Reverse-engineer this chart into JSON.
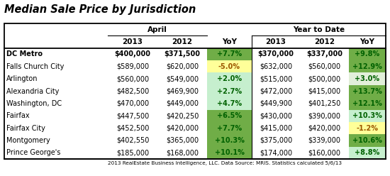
{
  "title": "Median Sale Price by Jurisdiction",
  "footnote": "2013 RealEstate Business Intelligence, LLC. Data Source: MRIS. Statistics calculated 5/6/13",
  "header_group1": "April",
  "header_group2": "Year to Date",
  "col_headers": [
    "2013",
    "2012",
    "YoY",
    "2013",
    "2012",
    "YoY"
  ],
  "rows": [
    {
      "name": "DC Metro",
      "bold": true,
      "april_2013": "$400,000",
      "april_2012": "$371,500",
      "april_yoy": "+7.7%",
      "ytd_2013": "$370,000",
      "ytd_2012": "$337,000",
      "ytd_yoy": "+9.8%"
    },
    {
      "name": "Falls Church City",
      "bold": false,
      "april_2013": "$589,000",
      "april_2012": "$620,000",
      "april_yoy": "-5.0%",
      "ytd_2013": "$632,000",
      "ytd_2012": "$560,000",
      "ytd_yoy": "+12.9%"
    },
    {
      "name": "Arlington",
      "bold": false,
      "april_2013": "$560,000",
      "april_2012": "$549,000",
      "april_yoy": "+2.0%",
      "ytd_2013": "$515,000",
      "ytd_2012": "$500,000",
      "ytd_yoy": "+3.0%"
    },
    {
      "name": "Alexandria City",
      "bold": false,
      "april_2013": "$482,500",
      "april_2012": "$469,900",
      "april_yoy": "+2.7%",
      "ytd_2013": "$472,000",
      "ytd_2012": "$415,000",
      "ytd_yoy": "+13.7%"
    },
    {
      "name": "Washington, DC",
      "bold": false,
      "april_2013": "$470,000",
      "april_2012": "$449,000",
      "april_yoy": "+4.7%",
      "ytd_2013": "$449,900",
      "ytd_2012": "$401,250",
      "ytd_yoy": "+12.1%"
    },
    {
      "name": "Fairfax",
      "bold": false,
      "april_2013": "$447,500",
      "april_2012": "$420,250",
      "april_yoy": "+6.5%",
      "ytd_2013": "$430,000",
      "ytd_2012": "$390,000",
      "ytd_yoy": "+10.3%"
    },
    {
      "name": "Fairfax City",
      "bold": false,
      "april_2013": "$452,500",
      "april_2012": "$420,000",
      "april_yoy": "+7.7%",
      "ytd_2013": "$415,000",
      "ytd_2012": "$420,000",
      "ytd_yoy": "-1.2%"
    },
    {
      "name": "Montgomery",
      "bold": false,
      "april_2013": "$402,550",
      "april_2012": "$365,000",
      "april_yoy": "+10.3%",
      "ytd_2013": "$375,000",
      "ytd_2012": "$339,000",
      "ytd_yoy": "+10.6%"
    },
    {
      "name": "Prince George's",
      "bold": false,
      "april_2013": "$185,000",
      "april_2012": "$168,000",
      "april_yoy": "+10.1%",
      "ytd_2013": "$174,000",
      "ytd_2012": "$160,000",
      "ytd_yoy": "+8.8%"
    }
  ],
  "april_yoy_colors": [
    "#70ad47",
    "#ffff99",
    "#c6efce",
    "#c6efce",
    "#c6efce",
    "#70ad47",
    "#70ad47",
    "#70ad47",
    "#70ad47"
  ],
  "ytd_yoy_colors": [
    "#70ad47",
    "#70ad47",
    "#e2efda",
    "#70ad47",
    "#70ad47",
    "#c6efce",
    "#ffff99",
    "#70ad47",
    "#c6efce"
  ],
  "april_yoy_text_colors": [
    "#006100",
    "#9c5700",
    "#006100",
    "#006100",
    "#006100",
    "#006100",
    "#006100",
    "#006100",
    "#006100"
  ],
  "ytd_yoy_text_colors": [
    "#006100",
    "#006100",
    "#006100",
    "#006100",
    "#006100",
    "#006100",
    "#9c5700",
    "#006100",
    "#006100"
  ],
  "bg_color": "#ffffff",
  "title_fontsize": 10.5,
  "data_fontsize": 7,
  "header_fontsize": 7.5
}
